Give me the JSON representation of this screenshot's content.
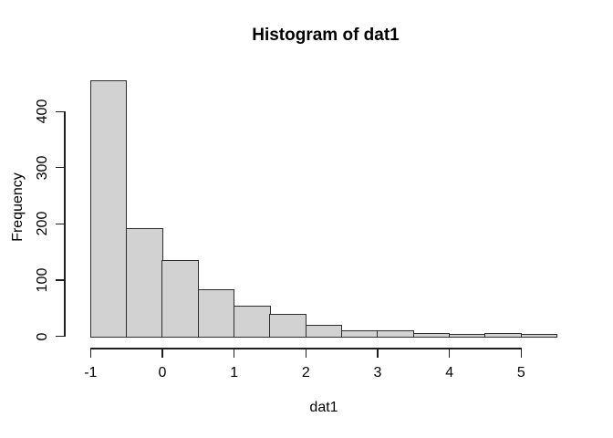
{
  "chart_data": {
    "type": "bar",
    "subtype": "histogram",
    "title": "Histogram of dat1",
    "xlabel": "dat1",
    "ylabel": "Frequency",
    "bin_width": 0.5,
    "bin_edges": [
      -1,
      -0.5,
      0,
      0.5,
      1,
      1.5,
      2,
      2.5,
      3,
      3.5,
      4,
      4.5,
      5,
      5.5
    ],
    "counts": [
      453,
      190,
      133,
      81,
      52,
      38,
      18,
      8,
      8,
      3,
      1,
      4,
      2
    ],
    "x_ticks": [
      -1,
      0,
      1,
      2,
      3,
      4,
      5
    ],
    "x_tick_labels": [
      "-1",
      "0",
      "1",
      "2",
      "3",
      "4",
      "5"
    ],
    "y_ticks": [
      0,
      100,
      200,
      300,
      400
    ],
    "y_tick_labels": [
      "0",
      "100",
      "200",
      "300",
      "400"
    ],
    "xlim": [
      -1,
      5.5
    ],
    "ylim": [
      0,
      455
    ],
    "grid": false,
    "legend": "none",
    "bar_fill": "#d2d2d2",
    "bar_border": "#2e2e2e",
    "axis_color": "#1f1f1f",
    "background": "#ffffff"
  }
}
